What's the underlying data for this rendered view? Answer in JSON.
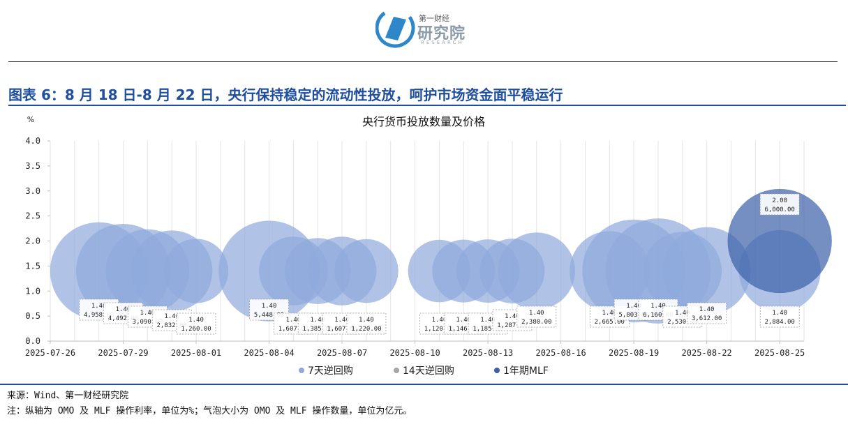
{
  "header": {
    "logo_cn": "第一财经",
    "logo_main": "研究院",
    "logo_en": "RESEARCH"
  },
  "figure_title": "图表 6：8 月 18 日-8 月 22 日，央行保持稳定的流动性投放，呵护市场资金面平稳运行",
  "source": "来源：Wind、第一财经研究院",
  "note": "注：纵轴为 OMO 及 MLF 操作利率，单位为%；气泡大小为 OMO 及 MLF 操作数量，单位为亿元。",
  "colors": {
    "title_blue": "#1f4e9e",
    "omo7": "#8ea9dc",
    "omo14": "#a6a6a6",
    "mlf": "#3b5fa8"
  },
  "chart_data": {
    "type": "scatter",
    "subtype": "bubble",
    "title": "央行货币投放数量及价格",
    "ylabel": "%",
    "ylim": [
      0,
      4.0
    ],
    "yticks": [
      "0.0",
      "0.5",
      "1.0",
      "1.5",
      "2.0",
      "2.5",
      "3.0",
      "3.5",
      "4.0"
    ],
    "x_range": [
      "2025-07-26",
      "2025-08-26"
    ],
    "xticks": [
      "2025-07-26",
      "2025-07-29",
      "2025-08-01",
      "2025-08-04",
      "2025-08-07",
      "2025-08-10",
      "2025-08-13",
      "2025-08-16",
      "2025-08-19",
      "2025-08-22",
      "2025-08-25"
    ],
    "grid": "vertical-daily",
    "legend_position": "bottom",
    "legend": [
      "7天逆回购",
      "14天逆回购",
      "1年期MLF"
    ],
    "series": [
      {
        "name": "7天逆回购",
        "color": "#8ea9dc",
        "points": [
          {
            "date": "2025-07-28",
            "rate": 1.4,
            "amount": 4958
          },
          {
            "date": "2025-07-29",
            "rate": 1.4,
            "amount": 4492
          },
          {
            "date": "2025-07-30",
            "rate": 1.4,
            "amount": 3090
          },
          {
            "date": "2025-07-31",
            "rate": 1.4,
            "amount": 2832
          },
          {
            "date": "2025-08-01",
            "rate": 1.4,
            "amount": 1260
          },
          {
            "date": "2025-08-04",
            "rate": 1.4,
            "amount": 5448
          },
          {
            "date": "2025-08-05",
            "rate": 1.4,
            "amount": 1607
          },
          {
            "date": "2025-08-06",
            "rate": 1.4,
            "amount": 1385
          },
          {
            "date": "2025-08-07",
            "rate": 1.4,
            "amount": 1607
          },
          {
            "date": "2025-08-08",
            "rate": 1.4,
            "amount": 1220
          },
          {
            "date": "2025-08-11",
            "rate": 1.4,
            "amount": 1120
          },
          {
            "date": "2025-08-12",
            "rate": 1.4,
            "amount": 1146
          },
          {
            "date": "2025-08-13",
            "rate": 1.4,
            "amount": 1185
          },
          {
            "date": "2025-08-14",
            "rate": 1.4,
            "amount": 1287
          },
          {
            "date": "2025-08-15",
            "rate": 1.4,
            "amount": 2380
          },
          {
            "date": "2025-08-18",
            "rate": 1.4,
            "amount": 2665
          },
          {
            "date": "2025-08-19",
            "rate": 1.4,
            "amount": 5803
          },
          {
            "date": "2025-08-20",
            "rate": 1.4,
            "amount": 6160
          },
          {
            "date": "2025-08-21",
            "rate": 1.4,
            "amount": 2530
          },
          {
            "date": "2025-08-22",
            "rate": 1.4,
            "amount": 3612
          },
          {
            "date": "2025-08-25",
            "rate": 1.4,
            "amount": 2884
          }
        ]
      },
      {
        "name": "14天逆回购",
        "color": "#a6a6a6",
        "points": []
      },
      {
        "name": "1年期MLF",
        "color": "#3b5fa8",
        "points": [
          {
            "date": "2025-08-25",
            "rate": 2.0,
            "amount": 6000
          }
        ]
      }
    ],
    "labels": [
      {
        "date": "2025-07-28",
        "rate": "1.40",
        "amount": "4,958.00",
        "row": 0
      },
      {
        "date": "2025-07-29",
        "rate": "1.40",
        "amount": "4,492.00",
        "row": 1
      },
      {
        "date": "2025-07-30",
        "rate": "1.40",
        "amount": "3,090.00",
        "row": 2
      },
      {
        "date": "2025-07-31",
        "rate": "1.40",
        "amount": "2,832.00",
        "row": 3
      },
      {
        "date": "2025-08-01",
        "rate": "1.40",
        "amount": "1,260.00",
        "row": 4
      },
      {
        "date": "2025-08-04",
        "rate": "1.40",
        "amount": "5,448.00",
        "row": 0
      },
      {
        "date": "2025-08-05",
        "rate": "1.40",
        "amount": "1,607.00",
        "row": 4
      },
      {
        "date": "2025-08-06",
        "rate": "1.40",
        "amount": "1,385.00",
        "row": 4
      },
      {
        "date": "2025-08-07",
        "rate": "1.40",
        "amount": "1,607.00",
        "row": 4
      },
      {
        "date": "2025-08-08",
        "rate": "1.40",
        "amount": "1,220.00",
        "row": 4
      },
      {
        "date": "2025-08-11",
        "rate": "1.40",
        "amount": "1,120.00",
        "row": 4
      },
      {
        "date": "2025-08-12",
        "rate": "1.40",
        "amount": "1,146.00",
        "row": 4
      },
      {
        "date": "2025-08-13",
        "rate": "1.40",
        "amount": "1,185.00",
        "row": 4
      },
      {
        "date": "2025-08-14",
        "rate": "1.40",
        "amount": "1,287.00",
        "row": 3
      },
      {
        "date": "2025-08-15",
        "rate": "1.40",
        "amount": "2,380.00",
        "row": 2
      },
      {
        "date": "2025-08-18",
        "rate": "1.40",
        "amount": "2,665.00",
        "row": 2
      },
      {
        "date": "2025-08-19",
        "rate": "1.40",
        "amount": "5,803.00",
        "row": 0
      },
      {
        "date": "2025-08-20",
        "rate": "1.40",
        "amount": "6,160.00",
        "row": 0
      },
      {
        "date": "2025-08-21",
        "rate": "1.40",
        "amount": "2,530.00",
        "row": 2
      },
      {
        "date": "2025-08-22",
        "rate": "1.40",
        "amount": "3,612.00",
        "row": 1
      },
      {
        "date": "2025-08-25",
        "rate": "1.40",
        "amount": "2,884.00",
        "row": 2
      },
      {
        "date": "2025-08-25",
        "rate": "2.00",
        "amount": "6,000.00",
        "row": 9
      }
    ]
  }
}
